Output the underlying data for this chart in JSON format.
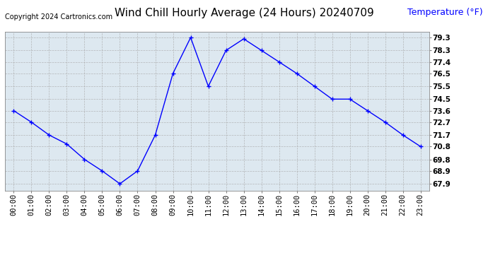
{
  "title": "Wind Chill Hourly Average (24 Hours) 20240709",
  "ylabel": "Temperature (°F)",
  "copyright": "Copyright 2024 Cartronics.com",
  "line_color": "blue",
  "marker_color": "blue",
  "background_color": "#ffffff",
  "plot_bg_color": "#dde8f0",
  "hours": [
    "00:00",
    "01:00",
    "02:00",
    "03:00",
    "04:00",
    "05:00",
    "06:00",
    "07:00",
    "08:00",
    "09:00",
    "10:00",
    "11:00",
    "12:00",
    "13:00",
    "14:00",
    "15:00",
    "16:00",
    "17:00",
    "18:00",
    "19:00",
    "20:00",
    "21:00",
    "22:00",
    "23:00"
  ],
  "values": [
    73.6,
    72.7,
    71.7,
    71.0,
    69.8,
    68.9,
    67.9,
    68.9,
    71.7,
    76.5,
    79.3,
    75.5,
    78.3,
    79.2,
    78.3,
    77.4,
    76.5,
    75.5,
    74.5,
    74.5,
    73.6,
    72.7,
    71.7,
    70.8
  ],
  "yticks": [
    67.9,
    68.9,
    69.8,
    70.8,
    71.7,
    72.7,
    73.6,
    74.5,
    75.5,
    76.5,
    77.4,
    78.3,
    79.3
  ],
  "ylim": [
    67.35,
    79.75
  ],
  "grid_color": "#aaaaaa",
  "title_fontsize": 11,
  "label_fontsize": 9,
  "tick_fontsize": 7.5,
  "copyright_fontsize": 7
}
